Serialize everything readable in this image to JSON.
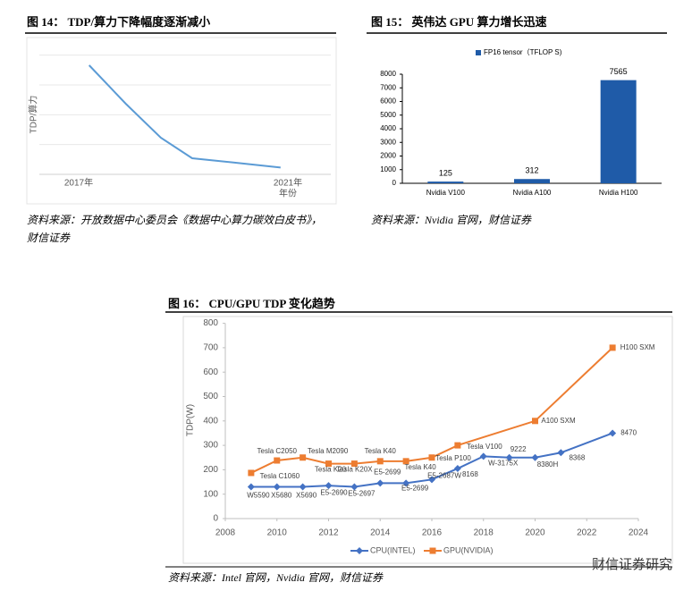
{
  "chart_data": [
    {
      "type": "line",
      "title": "图 14： TDP/算力下降幅度逐渐减小",
      "y_label": "TDP/算力",
      "x_label": "年份",
      "x": [
        2017.2,
        2017.9,
        2018.57,
        2019.17,
        2019.94,
        2020.86
      ],
      "values": [
        3.66,
        2.37,
        1.23,
        0.54,
        0.4,
        0.23
      ],
      "color": "#5b9bd5",
      "xlim": [
        2017,
        2021
      ],
      "xticks": [
        {
          "value": 2017,
          "label": "2017年"
        },
        {
          "value": 2021,
          "label": "2021年"
        }
      ],
      "ylim": [
        0,
        4.2
      ],
      "ygrid": [
        1,
        2,
        3,
        4
      ],
      "source": "资料来源：开放数据中心委员会《数据中心算力碳效白皮书》，财信证券"
    },
    {
      "type": "bar",
      "title": "图 15： 英伟达 GPU 算力增长迅速",
      "categories": [
        "Nvidia V100",
        "Nvidia A100",
        "Nvidia H100"
      ],
      "series": [
        {
          "name": "FP16 tensor（TFLOP S)",
          "color": "#1f5ba8",
          "values": [
            125,
            312,
            7565
          ]
        }
      ],
      "ylim": [
        0,
        8000
      ],
      "yticks": [
        0,
        1000,
        2000,
        3000,
        4000,
        5000,
        6000,
        7000,
        8000
      ],
      "legend": "top",
      "source": "资料来源：Nvidia 官网，财信证券"
    },
    {
      "type": "line",
      "title": "图 16： CPU/GPU TDP 变化趋势",
      "y_label": "TDP(W)",
      "xlim": [
        2008,
        2024
      ],
      "xticks": [
        2008,
        2010,
        2012,
        2014,
        2016,
        2018,
        2020,
        2022,
        2024
      ],
      "ylim": [
        0,
        800
      ],
      "yticks": [
        0,
        100,
        200,
        300,
        400,
        500,
        600,
        700,
        800
      ],
      "legend": "bottom",
      "series": [
        {
          "name": "CPU(INTEL)",
          "color": "#4472c4",
          "marker": "diamond",
          "x": [
            2009,
            2010,
            2011,
            2012,
            2013,
            2014,
            2015,
            2016,
            2017,
            2018,
            2019,
            2020,
            2021,
            2023
          ],
          "values": [
            130,
            130,
            130,
            135,
            130,
            145,
            145,
            160,
            205,
            255,
            250,
            250,
            270,
            350
          ],
          "point_labels": [
            "W5590",
            "X5680",
            "X5690",
            "E5-2690",
            "E5-2697",
            "E5-2699",
            "E5-2699",
            "E5-2687W",
            "8168",
            "W-3175X",
            "9222",
            "8380H",
            "8368",
            "8470"
          ]
        },
        {
          "name": "GPU(NVIDIA)",
          "color": "#ed7d31",
          "marker": "square",
          "x": [
            2009,
            2010,
            2011,
            2012,
            2013,
            2014,
            2015,
            2016,
            2017,
            2020,
            2023
          ],
          "values": [
            187,
            238,
            250,
            225,
            225,
            235,
            235,
            250,
            300,
            400,
            700
          ],
          "point_labels": [
            "Tesla C1060",
            "Tesla C2050",
            "Tesla M2090",
            "Tesla K20",
            "Tesla K20X",
            "Tesla K40",
            "Tesla K40",
            "Tesla P100",
            "Tesla V100",
            "A100 SXM",
            "H100 SXM"
          ]
        }
      ],
      "source": "资料来源：Intel 官网，Nvidia 官网，财信证券"
    }
  ],
  "watermark": "财信证券研究"
}
